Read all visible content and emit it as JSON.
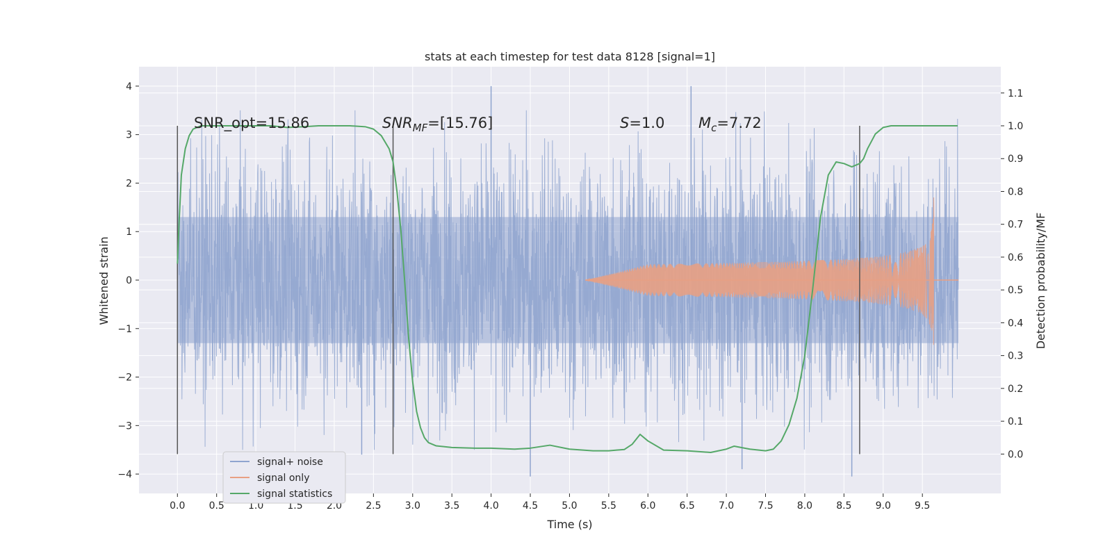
{
  "chart_data": {
    "type": "line",
    "title": "stats at each timestep for test data 8128 [signal=1]",
    "xlabel": "Time (s)",
    "ylabel": "Whitened strain",
    "y2label": "Detection probability/MF",
    "xlim": [
      -0.49,
      10.5
    ],
    "ylim": [
      -4.4,
      4.4
    ],
    "y2lim": [
      -0.12,
      1.18
    ],
    "xticks": [
      "0.0",
      "0.5",
      "1.0",
      "1.5",
      "2.0",
      "2.5",
      "3.0",
      "3.5",
      "4.0",
      "4.5",
      "5.0",
      "5.5",
      "6.0",
      "6.5",
      "7.0",
      "7.5",
      "8.0",
      "8.5",
      "9.0",
      "9.5"
    ],
    "yticks": [
      "4",
      "3",
      "2",
      "1",
      "0",
      "−1",
      "−2",
      "−3",
      "−4"
    ],
    "y2ticks": [
      "1.1",
      "1.0",
      "0.9",
      "0.8",
      "0.7",
      "0.6",
      "0.5",
      "0.4",
      "0.3",
      "0.2",
      "0.1",
      "0.0"
    ],
    "grid": true,
    "legend_position": "lower-left",
    "series": [
      {
        "name": "signal+ noise",
        "color": "#8fa4cf",
        "kind": "noise",
        "duration_s": 9.96,
        "typical_amplitude": 1.3,
        "extremes": [
          4.0,
          -4.05
        ]
      },
      {
        "name": "signal only",
        "color": "#e8a083",
        "kind": "chirp",
        "start_s": 5.2,
        "merger_s": 9.65,
        "peak_amplitude": 1.8
      },
      {
        "name": "signal statistics",
        "color": "#55a868",
        "axis": "right",
        "x": [
          0.0,
          0.02,
          0.05,
          0.1,
          0.15,
          0.2,
          0.3,
          0.5,
          0.8,
          1.0,
          1.2,
          1.4,
          1.6,
          1.8,
          2.0,
          2.2,
          2.4,
          2.5,
          2.6,
          2.7,
          2.75,
          2.8,
          2.85,
          2.9,
          2.95,
          3.0,
          3.05,
          3.1,
          3.15,
          3.2,
          3.3,
          3.5,
          3.8,
          4.0,
          4.3,
          4.5,
          4.75,
          5.0,
          5.3,
          5.5,
          5.7,
          5.8,
          5.9,
          6.0,
          6.2,
          6.5,
          6.8,
          7.0,
          7.1,
          7.3,
          7.5,
          7.6,
          7.7,
          7.8,
          7.9,
          8.0,
          8.1,
          8.2,
          8.3,
          8.4,
          8.5,
          8.6,
          8.7,
          8.75,
          8.8,
          8.9,
          9.0,
          9.1,
          9.3,
          9.6,
          9.95
        ],
        "y": [
          0.58,
          0.7,
          0.85,
          0.93,
          0.97,
          0.99,
          1.0,
          1.0,
          1.0,
          1.0,
          1.0,
          0.995,
          0.997,
          1.0,
          1.0,
          1.0,
          0.997,
          0.99,
          0.97,
          0.93,
          0.89,
          0.8,
          0.68,
          0.52,
          0.35,
          0.22,
          0.13,
          0.08,
          0.05,
          0.035,
          0.025,
          0.02,
          0.018,
          0.018,
          0.015,
          0.018,
          0.027,
          0.015,
          0.01,
          0.01,
          0.014,
          0.03,
          0.06,
          0.04,
          0.012,
          0.01,
          0.005,
          0.015,
          0.024,
          0.015,
          0.01,
          0.015,
          0.04,
          0.09,
          0.17,
          0.3,
          0.5,
          0.72,
          0.85,
          0.89,
          0.885,
          0.875,
          0.885,
          0.9,
          0.93,
          0.975,
          0.995,
          1.0,
          1.0,
          1.0,
          1.0
        ]
      }
    ],
    "vlines": [
      0.0,
      2.75,
      8.7
    ],
    "annotations": [
      {
        "text": "SNR_opt=15.86"
      },
      {
        "main": "SNR",
        "sub": "MF",
        "rest": "=[15.76]"
      },
      {
        "main": "S",
        "sub": "",
        "rest": "=1.0"
      },
      {
        "main": "M",
        "sub": "c",
        "rest": "=7.72"
      }
    ],
    "legend": [
      "signal+ noise",
      "signal only",
      "signal statistics"
    ]
  }
}
